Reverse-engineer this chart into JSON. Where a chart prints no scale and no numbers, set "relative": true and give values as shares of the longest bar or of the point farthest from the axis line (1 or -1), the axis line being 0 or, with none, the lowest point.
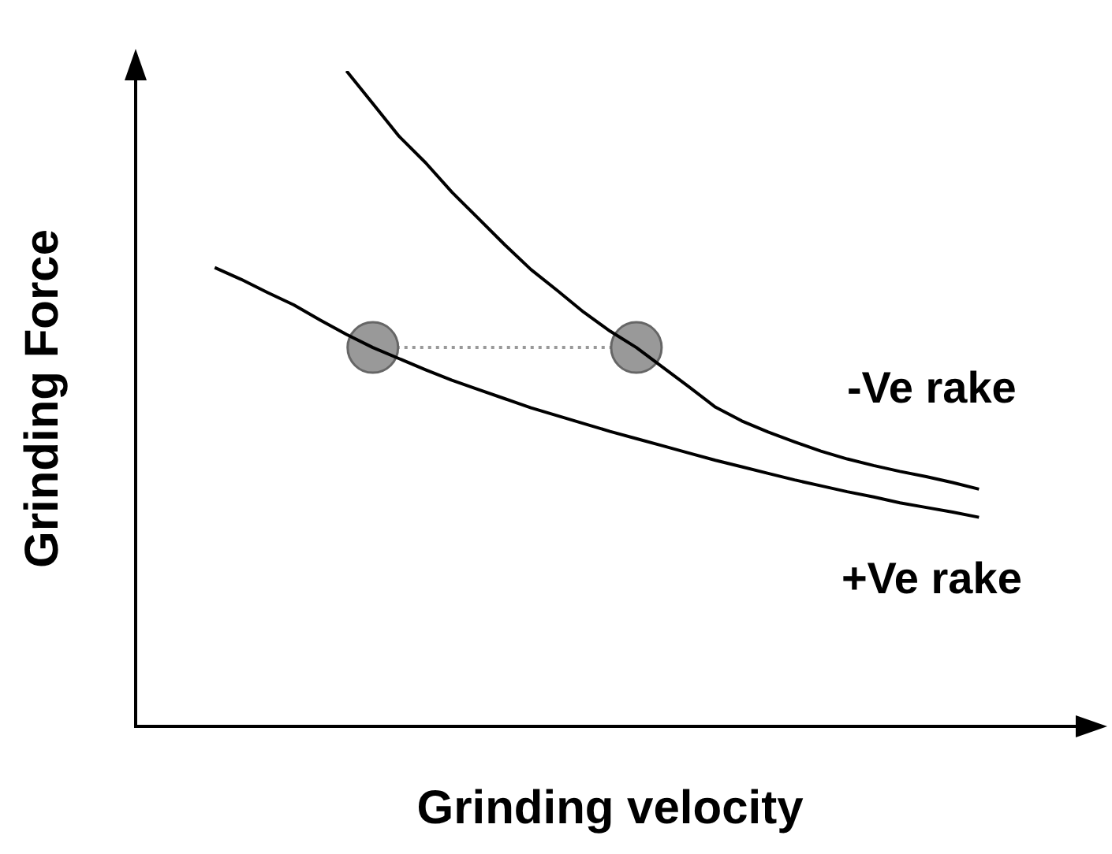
{
  "chart_data": {
    "type": "line",
    "relative": true,
    "xlabel": "Grinding velocity",
    "ylabel": "Grinding Force",
    "grid": false,
    "legend": false,
    "tick_labels": false,
    "categories": [
      null,
      null,
      null,
      null,
      null,
      null,
      null,
      null,
      null,
      null,
      null,
      null,
      null,
      null,
      null,
      null,
      null,
      null,
      null,
      null,
      null,
      null,
      null,
      null,
      null,
      null,
      null,
      null,
      null,
      null,
      null,
      null,
      null,
      null,
      null,
      null,
      null
    ],
    "series": [
      {
        "name": "-Ve rake",
        "color": "#000000",
        "marker": "none",
        "values": [
          null,
          null,
          null,
          null,
          null,
          null,
          null,
          null,
          1,
          0.95,
          0.9,
          0.86,
          0.815,
          0.775,
          0.735,
          0.697,
          0.665,
          0.632,
          0.603,
          0.578,
          0.548,
          0.518,
          0.487,
          0.466,
          0.449,
          0.434,
          0.42,
          0.408,
          0.398,
          0.389,
          0.381,
          0.372,
          0.362,
          null,
          null,
          null,
          null
        ]
      },
      {
        "name": "+Ve rake",
        "color": "#000000",
        "marker": "none",
        "values": [
          null,
          null,
          null,
          0.7,
          0.682,
          0.662,
          0.643,
          0.62,
          0.598,
          0.578,
          0.561,
          0.544,
          0.528,
          0.514,
          0.5,
          0.486,
          0.474,
          0.462,
          0.45,
          0.439,
          0.428,
          0.417,
          0.406,
          0.396,
          0.386,
          0.376,
          0.367,
          0.358,
          0.35,
          0.341,
          0.334,
          0.327,
          0.319,
          null,
          null,
          null,
          null
        ]
      },
      {
        "color": "#999999",
        "marker": "circle",
        "line_style": "dotted",
        "values": [
          null,
          null,
          null,
          null,
          null,
          null,
          null,
          null,
          null,
          0.578,
          null,
          null,
          null,
          null,
          null,
          null,
          null,
          null,
          null,
          0.578,
          null,
          null,
          null,
          null,
          null,
          null,
          null,
          null,
          null,
          null,
          null,
          null,
          null,
          null,
          null,
          null,
          null
        ]
      }
    ]
  }
}
